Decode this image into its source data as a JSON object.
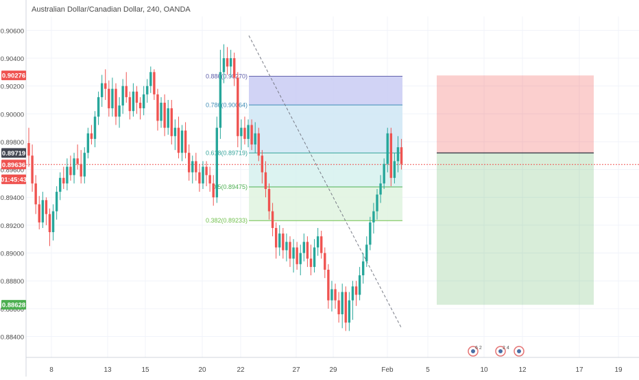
{
  "header": {
    "title": "Australian Dollar/Canadian Dollar, 240, OANDA"
  },
  "colors": {
    "up": "#26a69a",
    "down": "#ef5350",
    "axis_text": "#4a4a4a",
    "grid": "#f0f3fa",
    "last_price": "#ef5350",
    "stop": "#ef5350",
    "target": "#4caf50",
    "entry": "#434651"
  },
  "chart_data": {
    "type": "candlestick",
    "symbol": "Australian Dollar/Canadian Dollar",
    "interval": "240",
    "source": "OANDA",
    "ylim": [
      0.8825,
      0.907
    ],
    "y_ticks": [
      "0.90600",
      "0.90400",
      "0.90200",
      "0.90000",
      "0.89800",
      "0.89600",
      "0.89400",
      "0.89200",
      "0.89000",
      "0.88800",
      "0.88600",
      "0.88400"
    ],
    "x_ticks": [
      "8",
      "13",
      "15",
      "20",
      "22",
      "27",
      "29",
      "Feb",
      "5",
      "10",
      "12",
      "17",
      "19"
    ],
    "candles": [
      {
        "o": 0.8979,
        "h": 0.899,
        "l": 0.8962,
        "c": 0.897
      },
      {
        "o": 0.897,
        "h": 0.8978,
        "l": 0.8944,
        "c": 0.895
      },
      {
        "o": 0.895,
        "h": 0.8956,
        "l": 0.8928,
        "c": 0.8935
      },
      {
        "o": 0.8935,
        "h": 0.8941,
        "l": 0.8917,
        "c": 0.8922
      },
      {
        "o": 0.8922,
        "h": 0.8944,
        "l": 0.8918,
        "c": 0.8938
      },
      {
        "o": 0.8938,
        "h": 0.894,
        "l": 0.892,
        "c": 0.8928
      },
      {
        "o": 0.8928,
        "h": 0.8932,
        "l": 0.8905,
        "c": 0.8915
      },
      {
        "o": 0.8915,
        "h": 0.8935,
        "l": 0.8909,
        "c": 0.893
      },
      {
        "o": 0.893,
        "h": 0.8948,
        "l": 0.8924,
        "c": 0.8944
      },
      {
        "o": 0.8944,
        "h": 0.8958,
        "l": 0.8938,
        "c": 0.8954
      },
      {
        "o": 0.8954,
        "h": 0.8962,
        "l": 0.8946,
        "c": 0.895
      },
      {
        "o": 0.895,
        "h": 0.8968,
        "l": 0.8945,
        "c": 0.8962
      },
      {
        "o": 0.8962,
        "h": 0.897,
        "l": 0.8952,
        "c": 0.8956
      },
      {
        "o": 0.8956,
        "h": 0.8972,
        "l": 0.895,
        "c": 0.8968
      },
      {
        "o": 0.8968,
        "h": 0.8978,
        "l": 0.896,
        "c": 0.8964
      },
      {
        "o": 0.8964,
        "h": 0.8974,
        "l": 0.895,
        "c": 0.8955
      },
      {
        "o": 0.8955,
        "h": 0.8976,
        "l": 0.895,
        "c": 0.8972
      },
      {
        "o": 0.8972,
        "h": 0.899,
        "l": 0.8968,
        "c": 0.8986
      },
      {
        "o": 0.8986,
        "h": 0.8992,
        "l": 0.8978,
        "c": 0.8982
      },
      {
        "o": 0.8982,
        "h": 0.9002,
        "l": 0.8976,
        "c": 0.8998
      },
      {
        "o": 0.8998,
        "h": 0.9016,
        "l": 0.8992,
        "c": 0.9012
      },
      {
        "o": 0.9012,
        "h": 0.9028,
        "l": 0.9005,
        "c": 0.9022
      },
      {
        "o": 0.9022,
        "h": 0.9032,
        "l": 0.901,
        "c": 0.9018
      },
      {
        "o": 0.9018,
        "h": 0.9024,
        "l": 0.8998,
        "c": 0.9004
      },
      {
        "o": 0.9004,
        "h": 0.9026,
        "l": 0.8998,
        "c": 0.9018
      },
      {
        "o": 0.9018,
        "h": 0.9022,
        "l": 0.8992,
        "c": 0.8998
      },
      {
        "o": 0.8998,
        "h": 0.9012,
        "l": 0.899,
        "c": 0.9006
      },
      {
        "o": 0.9006,
        "h": 0.9025,
        "l": 0.9,
        "c": 0.902
      },
      {
        "o": 0.902,
        "h": 0.903,
        "l": 0.9008,
        "c": 0.9012
      },
      {
        "o": 0.9012,
        "h": 0.9016,
        "l": 0.8996,
        "c": 0.9002
      },
      {
        "o": 0.9002,
        "h": 0.9022,
        "l": 0.8998,
        "c": 0.9016
      },
      {
        "o": 0.9016,
        "h": 0.902,
        "l": 0.9,
        "c": 0.9008
      },
      {
        "o": 0.9008,
        "h": 0.9012,
        "l": 0.8996,
        "c": 0.9004
      },
      {
        "o": 0.9004,
        "h": 0.902,
        "l": 0.8999,
        "c": 0.9014
      },
      {
        "o": 0.9014,
        "h": 0.9025,
        "l": 0.9008,
        "c": 0.902
      },
      {
        "o": 0.902,
        "h": 0.9034,
        "l": 0.9015,
        "c": 0.903
      },
      {
        "o": 0.903,
        "h": 0.9032,
        "l": 0.901,
        "c": 0.9014
      },
      {
        "o": 0.9014,
        "h": 0.9018,
        "l": 0.8988,
        "c": 0.8995
      },
      {
        "o": 0.8995,
        "h": 0.9012,
        "l": 0.899,
        "c": 0.9008
      },
      {
        "o": 0.9008,
        "h": 0.9014,
        "l": 0.8984,
        "c": 0.899
      },
      {
        "o": 0.899,
        "h": 0.901,
        "l": 0.8985,
        "c": 0.9004
      },
      {
        "o": 0.9004,
        "h": 0.901,
        "l": 0.8978,
        "c": 0.8984
      },
      {
        "o": 0.8984,
        "h": 0.8996,
        "l": 0.8974,
        "c": 0.899
      },
      {
        "o": 0.899,
        "h": 0.8998,
        "l": 0.8968,
        "c": 0.8972
      },
      {
        "o": 0.8972,
        "h": 0.8992,
        "l": 0.8966,
        "c": 0.8988
      },
      {
        "o": 0.8988,
        "h": 0.8994,
        "l": 0.8968,
        "c": 0.8972
      },
      {
        "o": 0.8972,
        "h": 0.8978,
        "l": 0.8952,
        "c": 0.8958
      },
      {
        "o": 0.8958,
        "h": 0.897,
        "l": 0.895,
        "c": 0.8966
      },
      {
        "o": 0.8966,
        "h": 0.8972,
        "l": 0.8952,
        "c": 0.8958
      },
      {
        "o": 0.8958,
        "h": 0.8964,
        "l": 0.8944,
        "c": 0.895
      },
      {
        "o": 0.895,
        "h": 0.8966,
        "l": 0.8946,
        "c": 0.8962
      },
      {
        "o": 0.8962,
        "h": 0.8966,
        "l": 0.8948,
        "c": 0.8956
      },
      {
        "o": 0.8956,
        "h": 0.8962,
        "l": 0.8944,
        "c": 0.895
      },
      {
        "o": 0.895,
        "h": 0.8956,
        "l": 0.8934,
        "c": 0.894
      },
      {
        "o": 0.894,
        "h": 0.8998,
        "l": 0.8936,
        "c": 0.899
      },
      {
        "o": 0.899,
        "h": 0.9046,
        "l": 0.8982,
        "c": 0.903
      },
      {
        "o": 0.903,
        "h": 0.905,
        "l": 0.9022,
        "c": 0.904
      },
      {
        "o": 0.904,
        "h": 0.9048,
        "l": 0.9028,
        "c": 0.9034
      },
      {
        "o": 0.9034,
        "h": 0.9046,
        "l": 0.9026,
        "c": 0.904
      },
      {
        "o": 0.904,
        "h": 0.9044,
        "l": 0.902,
        "c": 0.9026
      },
      {
        "o": 0.9026,
        "h": 0.903,
        "l": 0.8976,
        "c": 0.8984
      },
      {
        "o": 0.8984,
        "h": 0.8996,
        "l": 0.8974,
        "c": 0.899
      },
      {
        "o": 0.899,
        "h": 0.8998,
        "l": 0.8978,
        "c": 0.8982
      },
      {
        "o": 0.8982,
        "h": 0.8996,
        "l": 0.8976,
        "c": 0.8992
      },
      {
        "o": 0.8992,
        "h": 0.8996,
        "l": 0.8974,
        "c": 0.8978
      },
      {
        "o": 0.8978,
        "h": 0.8994,
        "l": 0.8972,
        "c": 0.8986
      },
      {
        "o": 0.8986,
        "h": 0.899,
        "l": 0.8966,
        "c": 0.897
      },
      {
        "o": 0.897,
        "h": 0.8974,
        "l": 0.895,
        "c": 0.8958
      },
      {
        "o": 0.8958,
        "h": 0.8966,
        "l": 0.894,
        "c": 0.8946
      },
      {
        "o": 0.8946,
        "h": 0.895,
        "l": 0.8924,
        "c": 0.893
      },
      {
        "o": 0.893,
        "h": 0.8936,
        "l": 0.8912,
        "c": 0.8918
      },
      {
        "o": 0.8918,
        "h": 0.8922,
        "l": 0.8896,
        "c": 0.8904
      },
      {
        "o": 0.8904,
        "h": 0.892,
        "l": 0.8898,
        "c": 0.8914
      },
      {
        "o": 0.8914,
        "h": 0.8918,
        "l": 0.8896,
        "c": 0.8902
      },
      {
        "o": 0.8902,
        "h": 0.8914,
        "l": 0.8894,
        "c": 0.8908
      },
      {
        "o": 0.8908,
        "h": 0.8912,
        "l": 0.889,
        "c": 0.8896
      },
      {
        "o": 0.8896,
        "h": 0.891,
        "l": 0.8886,
        "c": 0.8904
      },
      {
        "o": 0.8904,
        "h": 0.8908,
        "l": 0.8888,
        "c": 0.8892
      },
      {
        "o": 0.8892,
        "h": 0.8906,
        "l": 0.8884,
        "c": 0.89
      },
      {
        "o": 0.89,
        "h": 0.8914,
        "l": 0.8894,
        "c": 0.8908
      },
      {
        "o": 0.8908,
        "h": 0.8912,
        "l": 0.889,
        "c": 0.8896
      },
      {
        "o": 0.8896,
        "h": 0.8906,
        "l": 0.8884,
        "c": 0.889
      },
      {
        "o": 0.889,
        "h": 0.891,
        "l": 0.8886,
        "c": 0.8904
      },
      {
        "o": 0.8904,
        "h": 0.8918,
        "l": 0.8898,
        "c": 0.8912
      },
      {
        "o": 0.8912,
        "h": 0.8916,
        "l": 0.8896,
        "c": 0.89
      },
      {
        "o": 0.89,
        "h": 0.8904,
        "l": 0.8882,
        "c": 0.8888
      },
      {
        "o": 0.8888,
        "h": 0.8892,
        "l": 0.886,
        "c": 0.8866
      },
      {
        "o": 0.8866,
        "h": 0.888,
        "l": 0.8858,
        "c": 0.8874
      },
      {
        "o": 0.8874,
        "h": 0.8878,
        "l": 0.886,
        "c": 0.8866
      },
      {
        "o": 0.8866,
        "h": 0.8872,
        "l": 0.885,
        "c": 0.8856
      },
      {
        "o": 0.8856,
        "h": 0.8878,
        "l": 0.8846,
        "c": 0.8872
      },
      {
        "o": 0.8872,
        "h": 0.8876,
        "l": 0.8844,
        "c": 0.885
      },
      {
        "o": 0.885,
        "h": 0.8872,
        "l": 0.8844,
        "c": 0.8866
      },
      {
        "o": 0.8866,
        "h": 0.888,
        "l": 0.8852,
        "c": 0.8876
      },
      {
        "o": 0.8876,
        "h": 0.888,
        "l": 0.8862,
        "c": 0.887
      },
      {
        "o": 0.887,
        "h": 0.889,
        "l": 0.8866,
        "c": 0.8884
      },
      {
        "o": 0.8884,
        "h": 0.89,
        "l": 0.8878,
        "c": 0.8894
      },
      {
        "o": 0.8894,
        "h": 0.8912,
        "l": 0.889,
        "c": 0.8906
      },
      {
        "o": 0.8906,
        "h": 0.8926,
        "l": 0.8902,
        "c": 0.8922
      },
      {
        "o": 0.8922,
        "h": 0.8936,
        "l": 0.8914,
        "c": 0.893
      },
      {
        "o": 0.893,
        "h": 0.8946,
        "l": 0.8924,
        "c": 0.8942
      },
      {
        "o": 0.8942,
        "h": 0.8956,
        "l": 0.8936,
        "c": 0.895
      },
      {
        "o": 0.895,
        "h": 0.8968,
        "l": 0.8946,
        "c": 0.8964
      },
      {
        "o": 0.8964,
        "h": 0.899,
        "l": 0.8958,
        "c": 0.8986
      },
      {
        "o": 0.8986,
        "h": 0.899,
        "l": 0.8948,
        "c": 0.8954
      },
      {
        "o": 0.8954,
        "h": 0.8972,
        "l": 0.895,
        "c": 0.8966
      },
      {
        "o": 0.8966,
        "h": 0.8984,
        "l": 0.8958,
        "c": 0.8976
      },
      {
        "o": 0.8976,
        "h": 0.8982,
        "l": 0.896,
        "c": 0.8964
      }
    ],
    "fibonacci": {
      "levels": [
        {
          "label": "0.886(0.90270)",
          "value": 0.9027,
          "color": "#5c5ca8",
          "fill": "#c9cbf3"
        },
        {
          "label": "0.786(0.90064)",
          "value": 0.90064,
          "color": "#3f8bb5",
          "fill": "#cfe6f4"
        },
        {
          "label": "0.618(0.89719)",
          "value": 0.89719,
          "color": "#33a39a",
          "fill": "#d6f1ee"
        },
        {
          "label": "0.5(0.89475)",
          "value": 0.89475,
          "color": "#4caf50",
          "fill": "#dff3df"
        },
        {
          "label": "0.382(0.89233)",
          "value": 0.89233,
          "color": "#6fbf4b",
          "fill": "#e6f6dc"
        }
      ]
    },
    "position": {
      "entry": 0.89719,
      "stop": 0.90276,
      "target": 0.88628
    },
    "price_labels": [
      {
        "text": "0.90276",
        "value": 0.90276,
        "color": "#ef5350"
      },
      {
        "text": "0.89719",
        "value": 0.89719,
        "color": "#434651"
      },
      {
        "text": "0.89636",
        "value": 0.89636,
        "color": "#ef5350"
      },
      {
        "text": "01:45:43",
        "value": 0.8953,
        "color": "#ef5350"
      },
      {
        "text": "0.88628",
        "value": 0.88628,
        "color": "#4caf50"
      }
    ],
    "last_price": 0.89636,
    "events": [
      {
        "label": "6 2"
      },
      {
        "label": "2 4"
      },
      {
        "label": ""
      }
    ]
  }
}
